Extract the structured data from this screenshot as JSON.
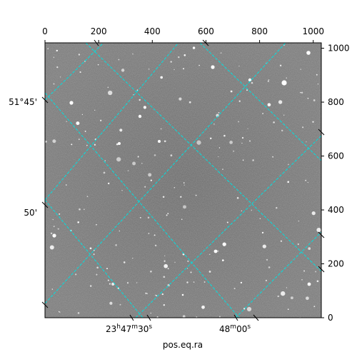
{
  "figure": {
    "xlabel": "pos.eq.ra",
    "pixel_axis_top": {
      "range": [
        0,
        1030
      ],
      "ticks": [
        0,
        200,
        400,
        600,
        800,
        1000
      ]
    },
    "pixel_axis_right": {
      "range": [
        0,
        1020
      ],
      "ticks": [
        0,
        200,
        400,
        600,
        800,
        1000
      ]
    },
    "ra_labels": [
      {
        "h": "23",
        "m": "47",
        "s": "30",
        "label": "23h47m30s"
      },
      {
        "m": "48",
        "s": "00",
        "label": "48m00s"
      }
    ],
    "dec_labels": [
      "51°45'",
      "50'"
    ],
    "colors": {
      "grid": "#00e0e0",
      "sky": "#6e6e6e",
      "star": "#ffffff"
    }
  }
}
